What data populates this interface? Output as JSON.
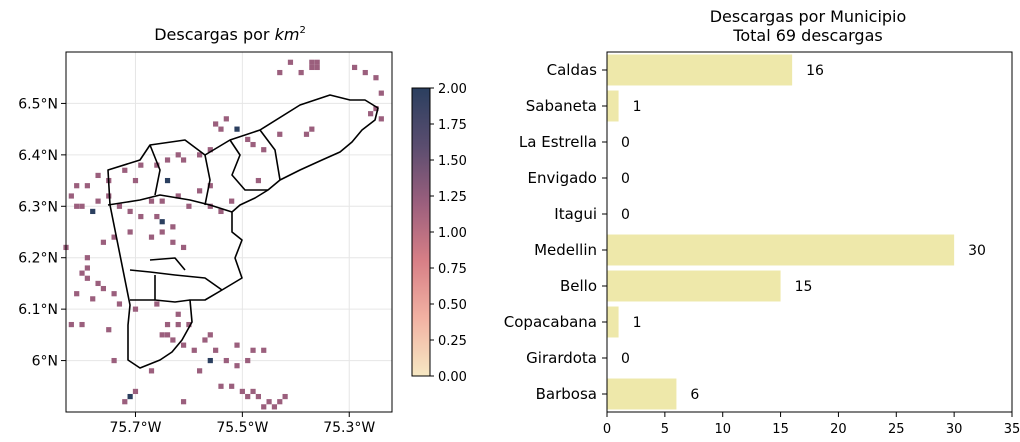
{
  "chart_data": [
    {
      "type": "heatmap",
      "title_prefix": "Descargas por ",
      "title_unit": "km",
      "title_sup": "2",
      "lon_ticks": [
        -75.7,
        -75.5,
        -75.3
      ],
      "lon_tick_labels": [
        "75.7°W",
        "75.5°W",
        "75.3°W"
      ],
      "lat_ticks": [
        6.0,
        6.1,
        6.2,
        6.3,
        6.4,
        6.5
      ],
      "lat_tick_labels": [
        "6°N",
        "6.1°N",
        "6.2°N",
        "6.3°N",
        "6.4°N",
        "6.5°N"
      ],
      "xlim": [
        -75.83,
        -75.22
      ],
      "ylim": [
        5.9,
        6.6
      ],
      "grid": true,
      "colorbar": {
        "min": 0.0,
        "max": 2.0,
        "ticks": [
          0.0,
          0.25,
          0.5,
          0.75,
          1.0,
          1.25,
          1.5,
          1.75,
          2.0
        ],
        "tick_labels": [
          "0.00",
          "0.25",
          "0.50",
          "0.75",
          "1.00",
          "1.25",
          "1.50",
          "1.75",
          "2.00"
        ],
        "colors": [
          "#f6e8c3",
          "#f2b2a3",
          "#d77f86",
          "#9b5f7d",
          "#5a4d6f",
          "#2b3f5f"
        ]
      },
      "cells": [
        [
          -75.41,
          6.58,
          1
        ],
        [
          -75.37,
          6.58,
          1
        ],
        [
          -75.36,
          6.58,
          1
        ],
        [
          -75.36,
          6.57,
          1
        ],
        [
          -75.37,
          6.57,
          1
        ],
        [
          -75.39,
          6.56,
          1
        ],
        [
          -75.43,
          6.56,
          1
        ],
        [
          -75.29,
          6.57,
          1
        ],
        [
          -75.27,
          6.56,
          1
        ],
        [
          -75.25,
          6.55,
          1
        ],
        [
          -75.24,
          6.52,
          1
        ],
        [
          -75.25,
          6.49,
          1
        ],
        [
          -75.26,
          6.48,
          1
        ],
        [
          -75.24,
          6.47,
          1
        ],
        [
          -75.38,
          6.44,
          1
        ],
        [
          -75.37,
          6.45,
          1
        ],
        [
          -75.43,
          6.44,
          1
        ],
        [
          -75.46,
          6.41,
          1
        ],
        [
          -75.48,
          6.42,
          1
        ],
        [
          -75.49,
          6.43,
          1
        ],
        [
          -75.51,
          6.45,
          2
        ],
        [
          -75.54,
          6.45,
          1
        ],
        [
          -75.55,
          6.46,
          1
        ],
        [
          -75.53,
          6.47,
          1
        ],
        [
          -75.56,
          6.41,
          1
        ],
        [
          -75.58,
          6.4,
          1
        ],
        [
          -75.61,
          6.39,
          1
        ],
        [
          -75.64,
          6.39,
          1
        ],
        [
          -75.66,
          6.38,
          1
        ],
        [
          -75.69,
          6.38,
          1
        ],
        [
          -75.72,
          6.37,
          1
        ],
        [
          -75.75,
          6.35,
          1
        ],
        [
          -75.77,
          6.36,
          1
        ],
        [
          -75.79,
          6.34,
          1
        ],
        [
          -75.81,
          6.34,
          1
        ],
        [
          -75.82,
          6.32,
          1
        ],
        [
          -75.8,
          6.3,
          1
        ],
        [
          -75.78,
          6.29,
          2
        ],
        [
          -75.77,
          6.31,
          1
        ],
        [
          -75.75,
          6.32,
          1
        ],
        [
          -75.73,
          6.3,
          1
        ],
        [
          -75.71,
          6.29,
          1
        ],
        [
          -75.69,
          6.28,
          1
        ],
        [
          -75.67,
          6.31,
          1
        ],
        [
          -75.65,
          6.31,
          1
        ],
        [
          -75.64,
          6.35,
          2
        ],
        [
          -75.62,
          6.32,
          1
        ],
        [
          -75.6,
          6.3,
          1
        ],
        [
          -75.58,
          6.33,
          1
        ],
        [
          -75.56,
          6.34,
          1
        ],
        [
          -75.56,
          6.3,
          1
        ],
        [
          -75.54,
          6.29,
          1
        ],
        [
          -75.52,
          6.31,
          1
        ],
        [
          -75.66,
          6.28,
          1
        ],
        [
          -75.65,
          6.27,
          2
        ],
        [
          -75.63,
          6.26,
          1
        ],
        [
          -75.65,
          6.25,
          1
        ],
        [
          -75.67,
          6.24,
          1
        ],
        [
          -75.63,
          6.23,
          1
        ],
        [
          -75.61,
          6.22,
          1
        ],
        [
          -75.71,
          6.25,
          1
        ],
        [
          -75.74,
          6.24,
          1
        ],
        [
          -75.76,
          6.23,
          1
        ],
        [
          -75.79,
          6.2,
          1
        ],
        [
          -75.83,
          6.22,
          1
        ],
        [
          -75.8,
          6.17,
          1
        ],
        [
          -75.79,
          6.16,
          1
        ],
        [
          -75.77,
          6.15,
          1
        ],
        [
          -75.76,
          6.14,
          1
        ],
        [
          -75.78,
          6.12,
          1
        ],
        [
          -75.74,
          6.13,
          1
        ],
        [
          -75.73,
          6.11,
          1
        ],
        [
          -75.81,
          6.13,
          1
        ],
        [
          -75.82,
          6.07,
          1
        ],
        [
          -75.8,
          6.07,
          1
        ],
        [
          -75.75,
          6.06,
          1
        ],
        [
          -75.7,
          6.1,
          1
        ],
        [
          -75.66,
          6.11,
          1
        ],
        [
          -75.64,
          6.07,
          1
        ],
        [
          -75.62,
          6.07,
          1
        ],
        [
          -75.6,
          6.07,
          1
        ],
        [
          -75.65,
          6.05,
          1
        ],
        [
          -75.63,
          6.04,
          1
        ],
        [
          -75.61,
          6.03,
          1
        ],
        [
          -75.59,
          6.02,
          1
        ],
        [
          -75.56,
          6.05,
          1
        ],
        [
          -75.57,
          6.04,
          1
        ],
        [
          -75.55,
          6.02,
          1
        ],
        [
          -75.56,
          6.0,
          2
        ],
        [
          -75.53,
          6.0,
          1
        ],
        [
          -75.51,
          5.99,
          1
        ],
        [
          -75.49,
          6.0,
          1
        ],
        [
          -75.51,
          6.03,
          1
        ],
        [
          -75.48,
          6.02,
          1
        ],
        [
          -75.46,
          6.02,
          1
        ],
        [
          -75.74,
          6.0,
          1
        ],
        [
          -75.67,
          5.98,
          1
        ],
        [
          -75.58,
          5.98,
          1
        ],
        [
          -75.54,
          5.95,
          1
        ],
        [
          -75.5,
          5.94,
          1
        ],
        [
          -75.49,
          5.93,
          1
        ],
        [
          -75.47,
          5.93,
          1
        ],
        [
          -75.45,
          5.92,
          1
        ],
        [
          -75.43,
          5.92,
          1
        ],
        [
          -75.42,
          5.93,
          1
        ],
        [
          -75.46,
          5.91,
          1
        ],
        [
          -75.44,
          5.91,
          1
        ],
        [
          -75.48,
          5.94,
          1
        ],
        [
          -75.7,
          5.94,
          1
        ],
        [
          -75.71,
          5.93,
          2
        ],
        [
          -75.72,
          5.92,
          1
        ],
        [
          -75.61,
          5.92,
          1
        ],
        [
          -75.52,
          5.95,
          1
        ],
        [
          -75.64,
          6.05,
          1
        ],
        [
          -75.62,
          6.09,
          1
        ],
        [
          -75.81,
          6.3,
          1
        ],
        [
          -75.7,
          6.35,
          1
        ],
        [
          -75.62,
          6.4,
          1
        ],
        [
          -75.47,
          6.35,
          1
        ],
        [
          -75.79,
          6.18,
          1
        ]
      ]
    },
    {
      "type": "bar",
      "orientation": "horizontal",
      "title": "Descargas por Municipio",
      "subtitle": "Total 69 descargas",
      "categories": [
        "Caldas",
        "Sabaneta",
        "La Estrella",
        "Envigado",
        "Itagui",
        "Medellin",
        "Bello",
        "Copacabana",
        "Girardota",
        "Barbosa"
      ],
      "values": [
        16,
        1,
        0,
        0,
        0,
        30,
        15,
        1,
        0,
        6
      ],
      "value_labels": [
        "16",
        "1",
        "0",
        "0",
        "0",
        "30",
        "15",
        "1",
        "0",
        "6"
      ],
      "xlim": [
        0,
        35
      ],
      "x_ticks": [
        0,
        5,
        10,
        15,
        20,
        25,
        30,
        35
      ],
      "x_tick_labels": [
        "0",
        "5",
        "10",
        "15",
        "20",
        "25",
        "30",
        "35"
      ],
      "bar_color": "#eee8aa",
      "grid": false,
      "legend": "none"
    }
  ]
}
